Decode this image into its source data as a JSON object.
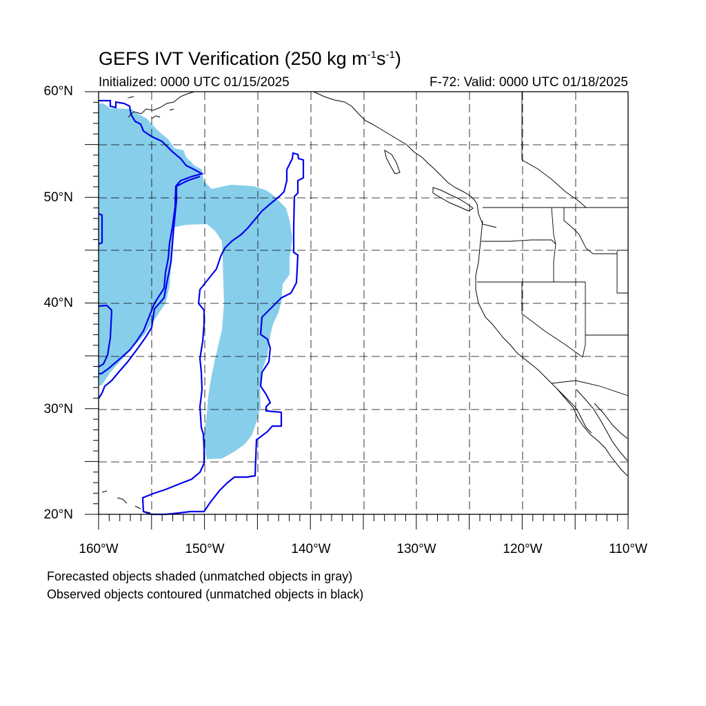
{
  "title": {
    "main": "GEFS IVT Verification (250 kg m",
    "sup1": "-1",
    "mid": "s",
    "sup2": "-1",
    "end": ")"
  },
  "subtitle": {
    "initialized": "Initialized: 0000 UTC 01/15/2025",
    "valid": "F-72: Valid: 0000 UTC 01/18/2025"
  },
  "axes": {
    "lat_labels": [
      "60°N",
      "50°N",
      "40°N",
      "30°N",
      "20°N"
    ],
    "lon_labels": [
      "160°W",
      "150°W",
      "140°W",
      "130°W",
      "120°W",
      "110°W"
    ]
  },
  "notes": {
    "line1": "Forecasted objects shaded (unmatched objects in gray)",
    "line2": "Observed objects contoured (unmatched objects in black)"
  },
  "colors": {
    "forecast_fill": "#87ceeb",
    "observed_contour": "#0000ee",
    "coastline": "#000000",
    "grid": "#000000"
  }
}
